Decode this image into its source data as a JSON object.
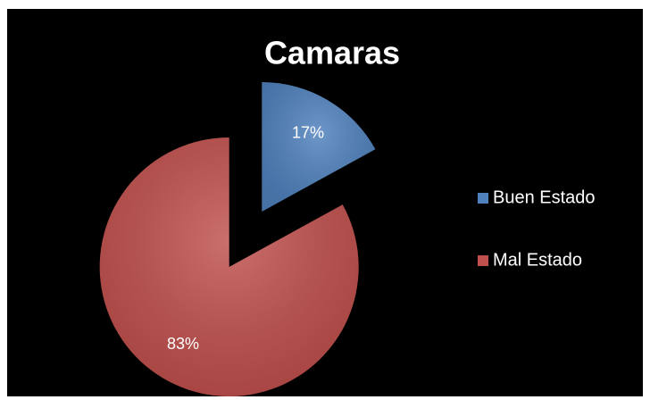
{
  "chart_data": {
    "type": "pie",
    "title": "Camaras",
    "categories": [
      "Buen Estado",
      "Mal Estado"
    ],
    "values": [
      17,
      83
    ],
    "value_labels": [
      "17%",
      "83%"
    ],
    "colors": [
      "#4f81bd",
      "#c0504d"
    ],
    "legend": "right"
  }
}
